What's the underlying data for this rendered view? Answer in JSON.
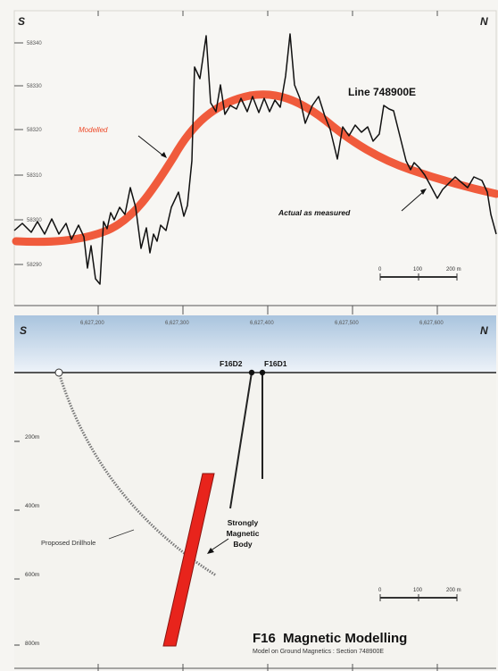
{
  "top_panel": {
    "direction_left": "S",
    "direction_right": "N",
    "title": "Line 748900E",
    "modelled_label": "Modelled",
    "measured_label": "Actual as measured",
    "y_ticks": [
      {
        "label": "58340",
        "value": 58340
      },
      {
        "label": "58330",
        "value": 58330
      },
      {
        "label": "58320",
        "value": 58320
      },
      {
        "label": "58310",
        "value": 58310
      },
      {
        "label": "58300",
        "value": 58300
      },
      {
        "label": "58290",
        "value": 58290
      }
    ],
    "scale_labels": [
      "0",
      "100",
      "200 m"
    ],
    "colors": {
      "modelled": "#ee4a28",
      "measured": "#111111"
    }
  },
  "axis": {
    "x_ticks": [
      "6,627,200",
      "6,627,300",
      "6,627,400",
      "6,627,500",
      "6,627,600"
    ]
  },
  "bottom_panel": {
    "direction_left": "S",
    "direction_right": "N",
    "hole_labels": [
      "F16D2",
      "F16D1"
    ],
    "depth_ticks": [
      "200m",
      "400m",
      "600m",
      "800m"
    ],
    "proposed_label": "Proposed Drillhole",
    "body_label_lines": [
      "Strongly",
      "Magnetic",
      "Body"
    ],
    "scale_labels": [
      "0",
      "100",
      "200 m"
    ],
    "title": "F16  Magnetic Modelling",
    "subtitle": "Model on Ground Magnetics : Section 748900E",
    "colors": {
      "body": "#e8241c",
      "sky_top": "#a9c4de",
      "sky_bottom": "#eef3f9"
    }
  }
}
